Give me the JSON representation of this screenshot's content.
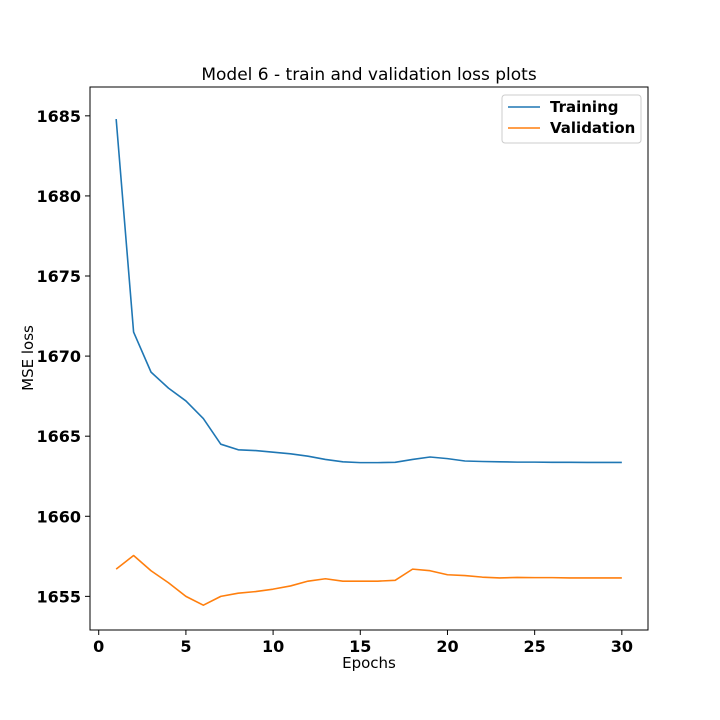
{
  "chart_data": {
    "type": "line",
    "title": "Model 6 - train and validation loss plots",
    "xlabel": "Epochs",
    "ylabel": "MSE loss",
    "xlim": [
      -0.5,
      31.5
    ],
    "ylim": [
      1652.9,
      1686.8
    ],
    "xticks": [
      0,
      5,
      10,
      15,
      20,
      25,
      30
    ],
    "yticks": [
      1655,
      1660,
      1665,
      1670,
      1675,
      1680,
      1685
    ],
    "grid": false,
    "legend_position": "top-right",
    "x": [
      1,
      2,
      3,
      4,
      5,
      6,
      7,
      8,
      9,
      10,
      11,
      12,
      13,
      14,
      15,
      16,
      17,
      18,
      19,
      20,
      21,
      22,
      23,
      24,
      25,
      26,
      27,
      28,
      29,
      30
    ],
    "series": [
      {
        "name": "Training",
        "color": "#1f77b4",
        "values": [
          1684.8,
          1671.5,
          1669.0,
          1668.0,
          1667.2,
          1666.1,
          1664.5,
          1664.15,
          1664.1,
          1664.0,
          1663.9,
          1663.75,
          1663.55,
          1663.4,
          1663.35,
          1663.35,
          1663.37,
          1663.55,
          1663.7,
          1663.6,
          1663.45,
          1663.42,
          1663.4,
          1663.38,
          1663.38,
          1663.37,
          1663.37,
          1663.36,
          1663.36,
          1663.36
        ]
      },
      {
        "name": "Validation",
        "color": "#ff7f0e",
        "values": [
          1656.7,
          1657.55,
          1656.6,
          1655.85,
          1655.0,
          1654.45,
          1655.0,
          1655.2,
          1655.3,
          1655.45,
          1655.65,
          1655.95,
          1656.1,
          1655.95,
          1655.95,
          1655.95,
          1656.0,
          1656.7,
          1656.6,
          1656.35,
          1656.3,
          1656.2,
          1656.15,
          1656.18,
          1656.17,
          1656.17,
          1656.15,
          1656.15,
          1656.15,
          1656.15
        ]
      }
    ]
  }
}
